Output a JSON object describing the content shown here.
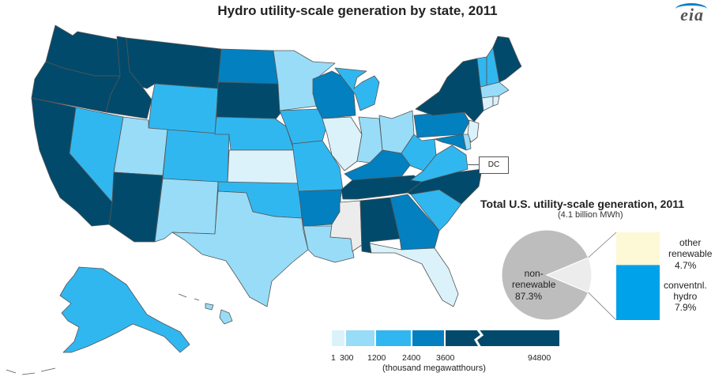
{
  "title": "Hydro utility-scale generation by state, 2011",
  "logo": "eia",
  "dc_label": "DC",
  "colors": {
    "c1": "#dbf2fb",
    "c2": "#98dcf8",
    "c3": "#31b7f0",
    "c4": "#0380c0",
    "c5": "#024a6b",
    "na": "#ececec",
    "pie_nonrenewable": "#bdbdbd",
    "pie_other": "#fdf8d6",
    "pie_hydro": "#00a2ea"
  },
  "legend": {
    "ticks": [
      "1",
      "300",
      "1200",
      "2400",
      "3600",
      "94800"
    ],
    "unit": "(thousand megawatthours)"
  },
  "pie": {
    "title": "Total U.S. utility-scale  generation, 2011",
    "subtitle": "(4.1 billion MWh)",
    "slices": [
      {
        "name": "non-\nrenewable",
        "value": 87.3,
        "label": "87.3%"
      },
      {
        "name": "other\nrenewable",
        "value": 4.7,
        "label": "4.7%"
      },
      {
        "name": "conventnl.\nhydro",
        "value": 7.9,
        "label": "7.9%"
      }
    ]
  },
  "labels": {
    "nonrenewable_name": "non-\nrenewable",
    "nonrenewable_value": "87.3%",
    "other_name": "other\nrenewable",
    "other_value": "4.7%",
    "hydro_name": "conventnl.\nhydro",
    "hydro_value": "7.9%"
  }
}
